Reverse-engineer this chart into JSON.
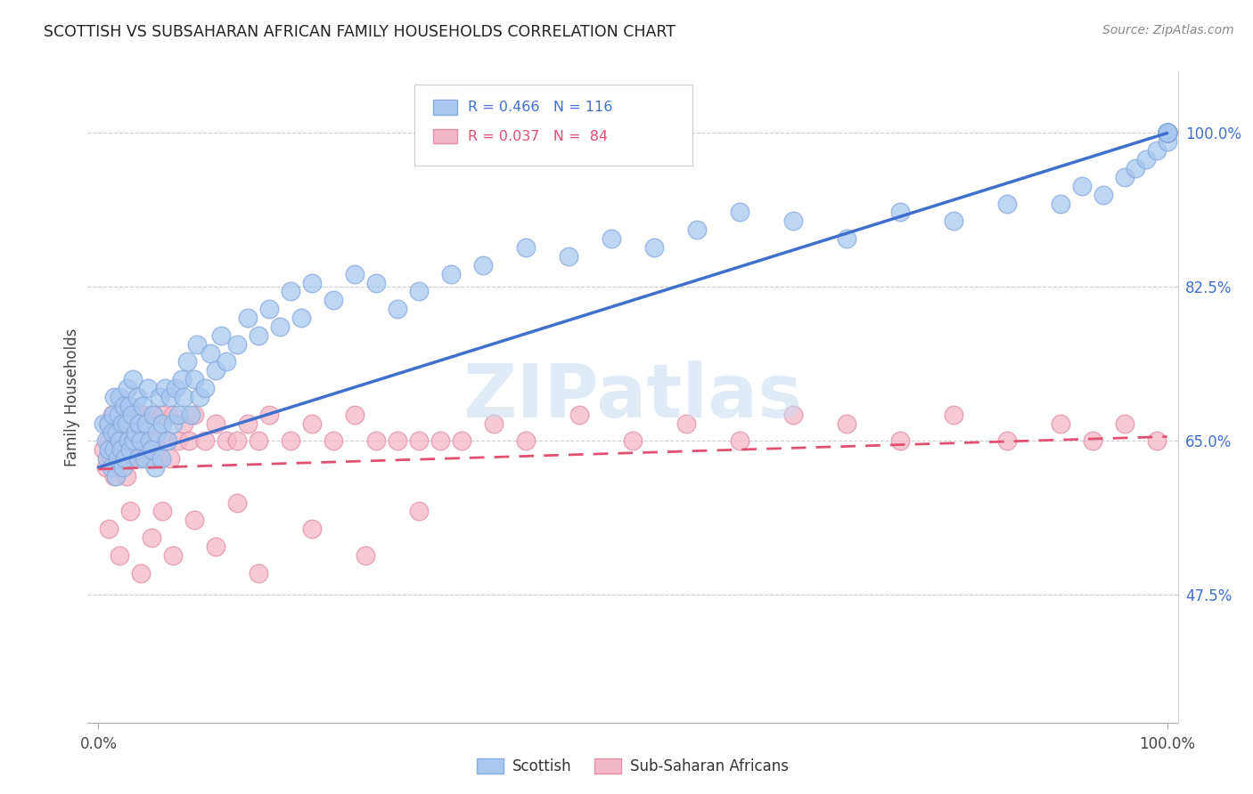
{
  "title": "SCOTTISH VS SUBSAHARAN AFRICAN FAMILY HOUSEHOLDS CORRELATION CHART",
  "source": "Source: ZipAtlas.com",
  "ylabel": "Family Households",
  "blue_color": "#A8C8F0",
  "blue_edge_color": "#85AADC",
  "pink_color": "#F5B8C8",
  "pink_edge_color": "#E090A8",
  "blue_line_color": "#4070CC",
  "pink_line_color": "#E05070",
  "legend_text_blue": "R = 0.466   N = 116",
  "legend_text_pink": "R = 0.037   N =  84",
  "watermark": "ZIPatlas",
  "ytick_vals": [
    0.475,
    0.65,
    0.825,
    1.0
  ],
  "ytick_labels": [
    "47.5%",
    "65.0%",
    "82.5%",
    "100.0%"
  ],
  "blue_trend": [
    0.0,
    0.62,
    1.0,
    1.0
  ],
  "pink_trend": [
    0.0,
    0.618,
    1.0,
    0.655
  ],
  "blue_x": [
    0.005,
    0.007,
    0.008,
    0.01,
    0.01,
    0.012,
    0.013,
    0.014,
    0.015,
    0.015,
    0.016,
    0.017,
    0.018,
    0.019,
    0.02,
    0.02,
    0.021,
    0.022,
    0.023,
    0.024,
    0.025,
    0.026,
    0.027,
    0.028,
    0.029,
    0.03,
    0.031,
    0.032,
    0.033,
    0.035,
    0.036,
    0.037,
    0.038,
    0.04,
    0.041,
    0.043,
    0.045,
    0.046,
    0.048,
    0.05,
    0.051,
    0.053,
    0.055,
    0.057,
    0.059,
    0.06,
    0.062,
    0.065,
    0.067,
    0.07,
    0.072,
    0.075,
    0.078,
    0.08,
    0.083,
    0.086,
    0.09,
    0.092,
    0.095,
    0.1,
    0.105,
    0.11,
    0.115,
    0.12,
    0.13,
    0.14,
    0.15,
    0.16,
    0.17,
    0.18,
    0.19,
    0.2,
    0.22,
    0.24,
    0.26,
    0.28,
    0.3,
    0.33,
    0.36,
    0.4,
    0.44,
    0.48,
    0.52,
    0.56,
    0.6,
    0.65,
    0.7,
    0.75,
    0.8,
    0.85,
    0.9,
    0.92,
    0.94,
    0.96,
    0.97,
    0.98,
    0.99,
    1.0,
    1.0,
    1.0,
    1.0,
    1.0,
    1.0,
    1.0,
    1.0,
    1.0,
    1.0,
    1.0,
    1.0,
    1.0,
    1.0,
    1.0,
    1.0,
    1.0,
    1.0,
    1.0
  ],
  "blue_y": [
    0.67,
    0.65,
    0.63,
    0.64,
    0.67,
    0.62,
    0.66,
    0.68,
    0.64,
    0.7,
    0.61,
    0.66,
    0.63,
    0.68,
    0.65,
    0.7,
    0.64,
    0.67,
    0.62,
    0.69,
    0.63,
    0.67,
    0.71,
    0.65,
    0.69,
    0.64,
    0.68,
    0.72,
    0.65,
    0.66,
    0.7,
    0.63,
    0.67,
    0.65,
    0.69,
    0.63,
    0.67,
    0.71,
    0.65,
    0.64,
    0.68,
    0.62,
    0.66,
    0.7,
    0.63,
    0.67,
    0.71,
    0.65,
    0.7,
    0.67,
    0.71,
    0.68,
    0.72,
    0.7,
    0.74,
    0.68,
    0.72,
    0.76,
    0.7,
    0.71,
    0.75,
    0.73,
    0.77,
    0.74,
    0.76,
    0.79,
    0.77,
    0.8,
    0.78,
    0.82,
    0.79,
    0.83,
    0.81,
    0.84,
    0.83,
    0.8,
    0.82,
    0.84,
    0.85,
    0.87,
    0.86,
    0.88,
    0.87,
    0.89,
    0.91,
    0.9,
    0.88,
    0.91,
    0.9,
    0.92,
    0.92,
    0.94,
    0.93,
    0.95,
    0.96,
    0.97,
    0.98,
    0.99,
    1.0,
    1.0,
    1.0,
    1.0,
    1.0,
    1.0,
    1.0,
    1.0,
    1.0,
    1.0,
    1.0,
    1.0,
    1.0,
    1.0,
    1.0,
    1.0,
    1.0,
    1.0
  ],
  "pink_x": [
    0.005,
    0.007,
    0.009,
    0.01,
    0.012,
    0.013,
    0.015,
    0.016,
    0.018,
    0.02,
    0.021,
    0.022,
    0.024,
    0.025,
    0.026,
    0.027,
    0.028,
    0.029,
    0.03,
    0.031,
    0.032,
    0.034,
    0.036,
    0.038,
    0.04,
    0.042,
    0.045,
    0.048,
    0.05,
    0.053,
    0.056,
    0.06,
    0.063,
    0.067,
    0.07,
    0.075,
    0.08,
    0.085,
    0.09,
    0.1,
    0.11,
    0.12,
    0.13,
    0.14,
    0.15,
    0.16,
    0.18,
    0.2,
    0.22,
    0.24,
    0.26,
    0.28,
    0.3,
    0.32,
    0.34,
    0.37,
    0.4,
    0.45,
    0.5,
    0.55,
    0.6,
    0.65,
    0.7,
    0.75,
    0.8,
    0.85,
    0.9,
    0.93,
    0.96,
    0.99,
    0.01,
    0.02,
    0.03,
    0.04,
    0.05,
    0.06,
    0.07,
    0.09,
    0.11,
    0.13,
    0.15,
    0.2,
    0.25,
    0.3
  ],
  "pink_y": [
    0.64,
    0.62,
    0.67,
    0.65,
    0.63,
    0.68,
    0.61,
    0.66,
    0.64,
    0.62,
    0.67,
    0.65,
    0.63,
    0.68,
    0.61,
    0.66,
    0.64,
    0.67,
    0.63,
    0.68,
    0.65,
    0.63,
    0.68,
    0.65,
    0.63,
    0.68,
    0.65,
    0.63,
    0.68,
    0.65,
    0.63,
    0.68,
    0.65,
    0.63,
    0.68,
    0.65,
    0.67,
    0.65,
    0.68,
    0.65,
    0.67,
    0.65,
    0.65,
    0.67,
    0.65,
    0.68,
    0.65,
    0.67,
    0.65,
    0.68,
    0.65,
    0.65,
    0.65,
    0.65,
    0.65,
    0.67,
    0.65,
    0.68,
    0.65,
    0.67,
    0.65,
    0.68,
    0.67,
    0.65,
    0.68,
    0.65,
    0.67,
    0.65,
    0.67,
    0.65,
    0.55,
    0.52,
    0.57,
    0.5,
    0.54,
    0.57,
    0.52,
    0.56,
    0.53,
    0.58,
    0.5,
    0.55,
    0.52,
    0.57
  ]
}
